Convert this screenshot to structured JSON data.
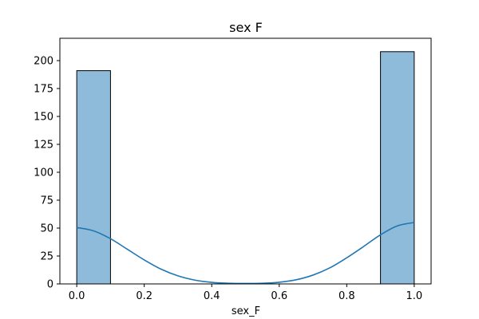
{
  "chart_data": {
    "type": "bar",
    "subtype": "histogram-with-kde",
    "title": "sex F",
    "xlabel": "sex_F",
    "ylabel": "",
    "xlim": [
      -0.05,
      1.05
    ],
    "ylim": [
      0,
      220
    ],
    "xticks": [
      0.0,
      0.2,
      0.4,
      0.6,
      0.8,
      1.0
    ],
    "xtick_labels": [
      "0.0",
      "0.2",
      "0.4",
      "0.6",
      "0.8",
      "1.0"
    ],
    "yticks": [
      0,
      25,
      50,
      75,
      100,
      125,
      150,
      175,
      200
    ],
    "ytick_labels": [
      "0",
      "25",
      "50",
      "75",
      "100",
      "125",
      "150",
      "175",
      "200"
    ],
    "bins": [
      {
        "x0": 0.0,
        "x1": 0.1,
        "count": 191
      },
      {
        "x0": 0.1,
        "x1": 0.2,
        "count": 0
      },
      {
        "x0": 0.2,
        "x1": 0.3,
        "count": 0
      },
      {
        "x0": 0.3,
        "x1": 0.4,
        "count": 0
      },
      {
        "x0": 0.4,
        "x1": 0.5,
        "count": 0
      },
      {
        "x0": 0.5,
        "x1": 0.6,
        "count": 0
      },
      {
        "x0": 0.6,
        "x1": 0.7,
        "count": 0
      },
      {
        "x0": 0.7,
        "x1": 0.8,
        "count": 0
      },
      {
        "x0": 0.8,
        "x1": 0.9,
        "count": 0
      },
      {
        "x0": 0.9,
        "x1": 1.0,
        "count": 208
      }
    ],
    "kde": {
      "x": [
        0.0,
        0.05,
        0.1,
        0.15,
        0.2,
        0.25,
        0.3,
        0.35,
        0.4,
        0.45,
        0.5,
        0.55,
        0.6,
        0.65,
        0.7,
        0.75,
        0.8,
        0.85,
        0.9,
        0.95,
        1.0
      ],
      "y": [
        50.5,
        47.5,
        40.5,
        31.0,
        21.5,
        13.2,
        7.2,
        3.4,
        1.4,
        0.6,
        0.4,
        0.6,
        1.5,
        3.7,
        7.9,
        14.4,
        23.4,
        33.5,
        44.0,
        52.0,
        55.0
      ]
    },
    "grid": false,
    "legend": false,
    "colors": {
      "bar_fill": "#8fbbdb",
      "bar_edge": "#000000",
      "kde_line": "#1f77b4"
    }
  }
}
